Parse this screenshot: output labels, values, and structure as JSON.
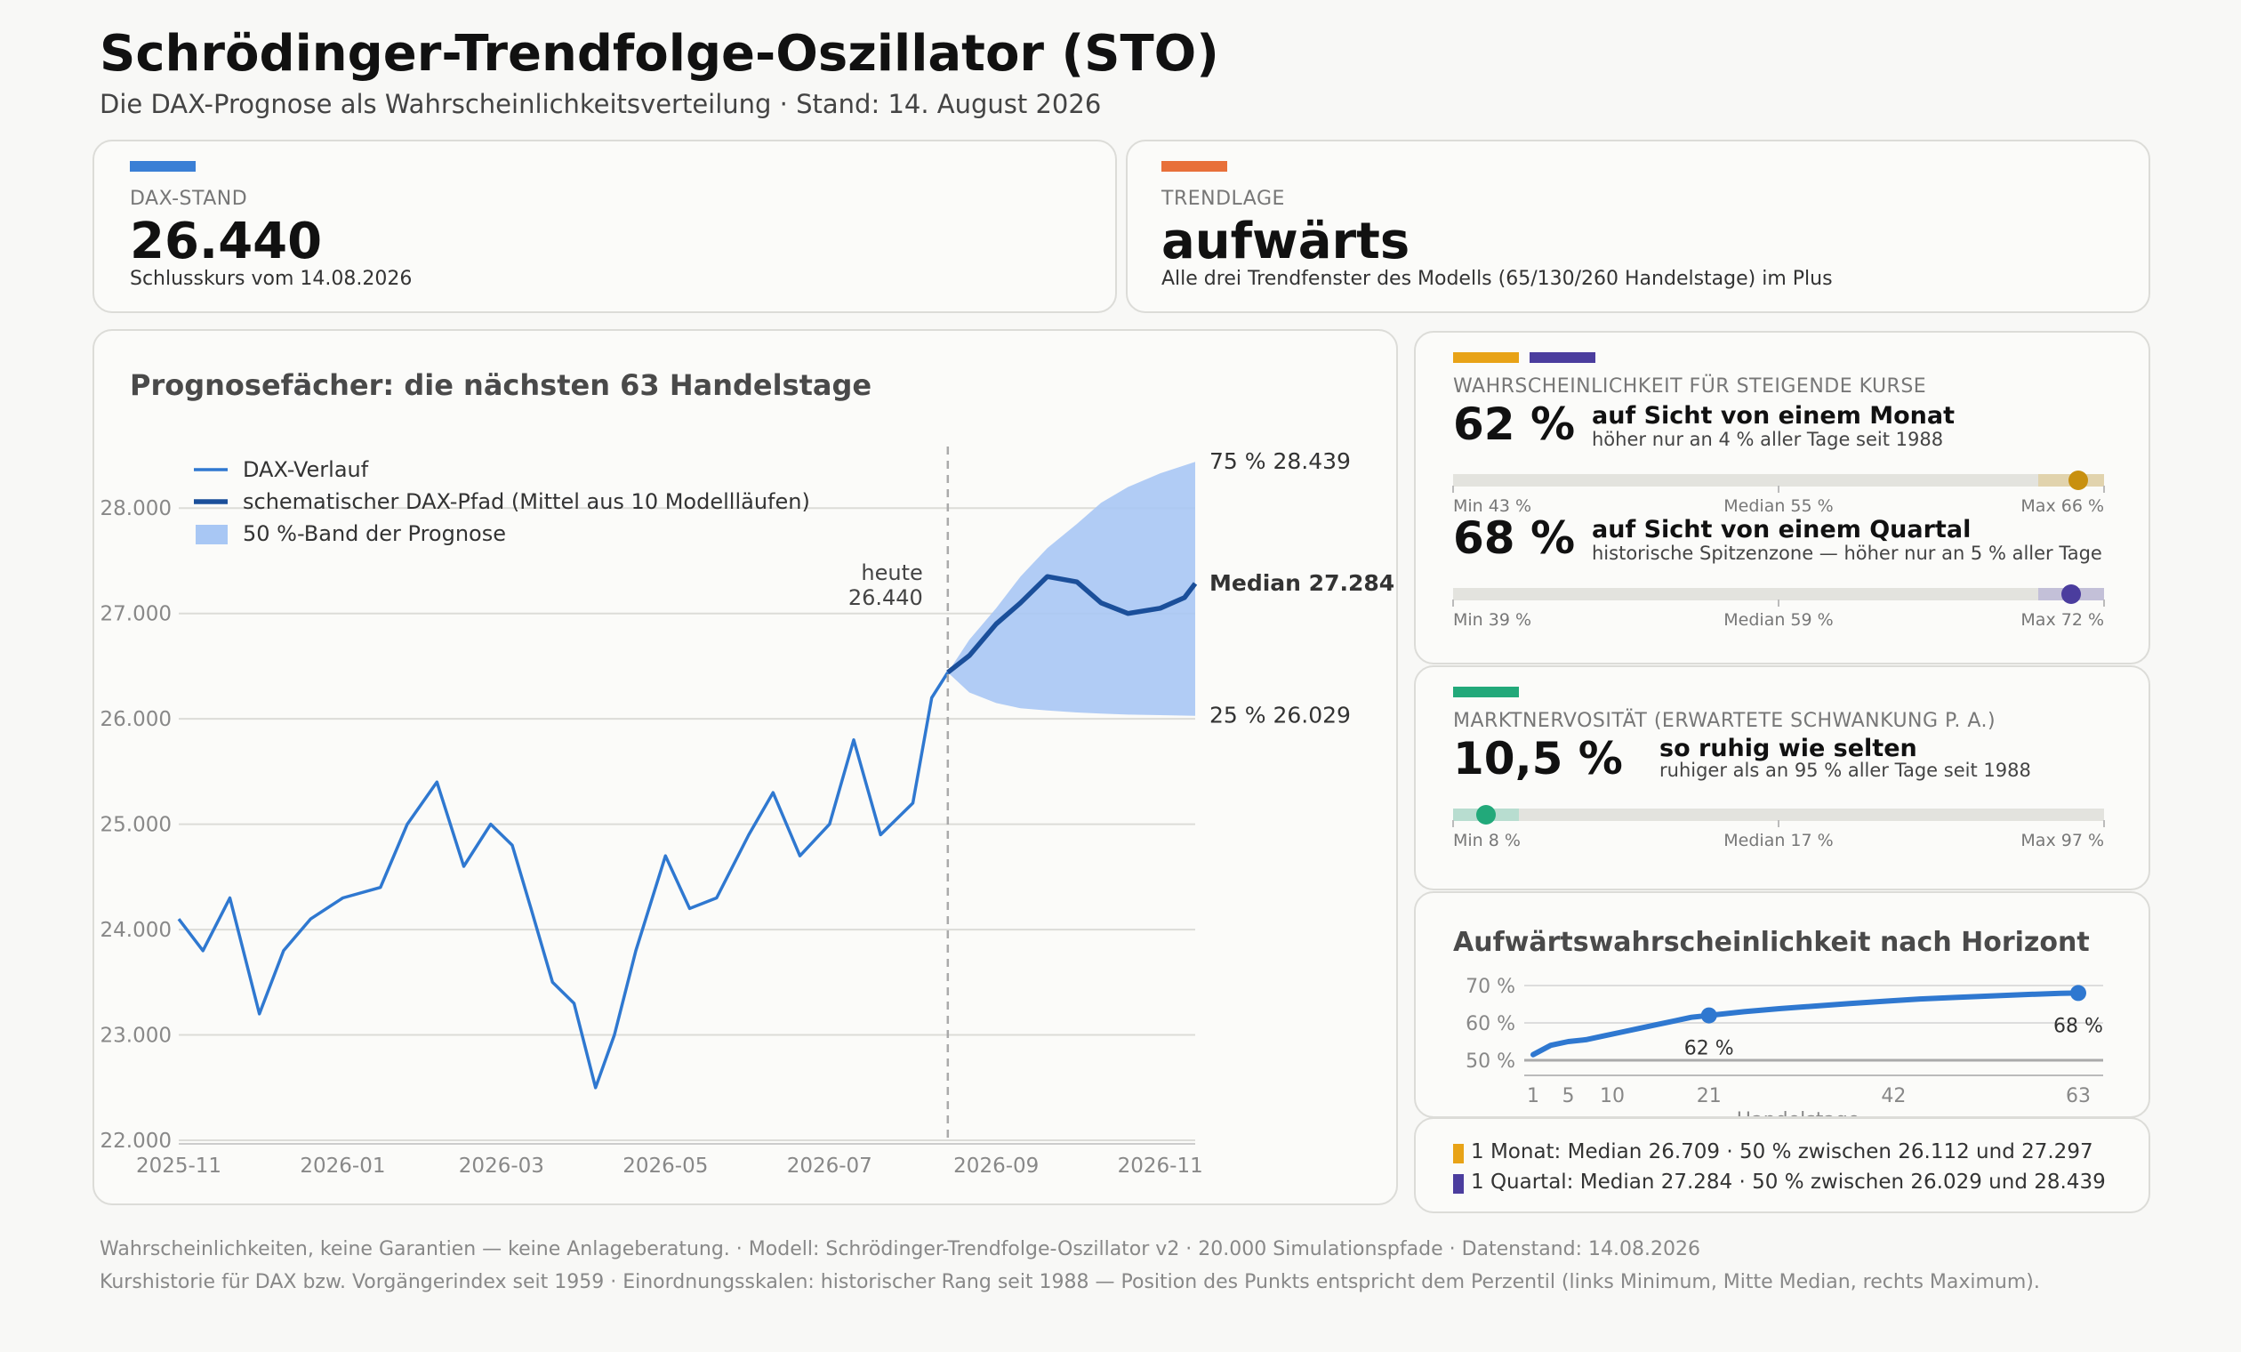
{
  "header": {
    "title": "Schrödinger-Trendfolge-Oszillator (STO)",
    "subtitle": "Die DAX-Prognose als Wahrscheinlichkeitsverteilung  ·  Stand: 14. August 2026"
  },
  "kpi_dax": {
    "label": "DAX-STAND",
    "value": "26.440",
    "sub": "Schlusskurs vom 14.08.2026",
    "accent": "#3a7fd5"
  },
  "kpi_trend": {
    "label": "TRENDLAGE",
    "value": "aufwärts",
    "sub": "Alle drei Trendfenster des Modells (65/130/260 Handelstage) im Plus",
    "accent": "#e8703a"
  },
  "prob_card": {
    "label": "WAHRSCHEINLICHKEIT FÜR STEIGENDE KURSE",
    "accent_colors": [
      "#e8a317",
      "#4b3d9e"
    ],
    "month": {
      "value": "62 %",
      "title": "auf Sicht von einem Monat",
      "sub": "höher nur an 4 % aller Tage seit 1988",
      "min": "Min 43 %",
      "median": "Median 55 %",
      "max": "Max 66 %",
      "percentile": 96,
      "color": "#c8900f",
      "zone_color": "#e1d3ad"
    },
    "quarter": {
      "value": "68 %",
      "title": "auf Sicht von einem Quartal",
      "sub": "historische Spitzenzone — höher nur an 5 % aller Tage",
      "min": "Min 39 %",
      "median": "Median 59 %",
      "max": "Max 72 %",
      "percentile": 95,
      "color": "#4b3d9e",
      "zone_color": "#c3c0d8"
    }
  },
  "vol_card": {
    "label": "MARKTNERVOSITÄT (ERWARTETE SCHWANKUNG P. A.)",
    "accent": "#22a97a",
    "value": "10,5 %",
    "title": "so ruhig wie selten",
    "sub": "ruhiger als an 95 % aller Tage seit 1988",
    "min": "Min 8 %",
    "median": "Median 17 %",
    "max": "Max 97 %",
    "percentile": 5,
    "color": "#22a97a",
    "zone_color": "#b8ddd0"
  },
  "horizon_card": {
    "title": "Aufwärtswahrscheinlichkeit nach Horizont"
  },
  "legend_card": {
    "month": {
      "color": "#e8a317",
      "text": "1 Monat:  Median 26.709  ·  50 % zwischen 26.112 und 27.297"
    },
    "quarter": {
      "color": "#4b3d9e",
      "text": "1 Quartal:  Median 27.284  ·  50 % zwischen 26.029 und 28.439"
    }
  },
  "footer": {
    "line1": "Wahrscheinlichkeiten, keine Garantien — keine Anlageberatung.   ·   Modell: Schrödinger-Trendfolge-Oszillator v2  ·  20.000 Simulationspfade  ·  Datenstand: 14.08.2026",
    "line2": "Kurshistorie für DAX bzw. Vorgängerindex seit 1959  ·  Einordnungsskalen: historischer Rang seit 1988 — Position des Punkts entspricht dem Perzentil (links Minimum, Mitte Median, rechts Maximum)."
  },
  "chart_data": [
    {
      "type": "line",
      "title": "Prognosefächer: die nächsten 63 Handelstage",
      "x_tick_labels": [
        "2025-11",
        "2026-01",
        "2026-03",
        "2026-05",
        "2026-07",
        "2026-09",
        "2026-11"
      ],
      "y_tick_labels": [
        "22.000",
        "23.000",
        "24.000",
        "25.000",
        "26.000",
        "27.000",
        "28.000"
      ],
      "ylim": [
        22000,
        28500
      ],
      "xlim": [
        "2025-11-01",
        "2026-11-14"
      ],
      "today": {
        "date": "2026-08-14",
        "label": "heute",
        "value_label": "26.440",
        "value": 26440
      },
      "legend": [
        "DAX-Verlauf",
        "schematischer DAX-Pfad (Mittel aus 10 Modellläufen)",
        "50 %-Band der Prognose"
      ],
      "colors": {
        "history": "#2f78d0",
        "path": "#1b4f9a",
        "band": "#a8c7f4"
      },
      "annotations": {
        "p75": "75 %  28.439",
        "median": "Median  27.284",
        "p25": "25 %  26.029"
      },
      "history": {
        "dates": [
          "2025-11-01",
          "2025-11-10",
          "2025-11-20",
          "2025-12-01",
          "2025-12-10",
          "2025-12-20",
          "2026-01-01",
          "2026-01-15",
          "2026-01-25",
          "2026-02-05",
          "2026-02-15",
          "2026-02-25",
          "2026-03-05",
          "2026-03-12",
          "2026-03-20",
          "2026-03-28",
          "2026-04-05",
          "2026-04-12",
          "2026-04-20",
          "2026-05-01",
          "2026-05-10",
          "2026-05-20",
          "2026-06-01",
          "2026-06-10",
          "2026-06-20",
          "2026-07-01",
          "2026-07-10",
          "2026-07-20",
          "2026-08-01",
          "2026-08-08",
          "2026-08-14"
        ],
        "values": [
          24100,
          23800,
          24300,
          23200,
          23800,
          24100,
          24300,
          24400,
          25000,
          25400,
          24600,
          25000,
          24800,
          24200,
          23500,
          23300,
          22500,
          23000,
          23800,
          24700,
          24200,
          24300,
          24900,
          25300,
          24700,
          25000,
          25800,
          24900,
          25200,
          26200,
          26440
        ]
      },
      "path": {
        "dates": [
          "2026-08-14",
          "2026-08-22",
          "2026-09-01",
          "2026-09-10",
          "2026-09-20",
          "2026-10-01",
          "2026-10-10",
          "2026-10-20",
          "2026-11-01",
          "2026-11-10",
          "2026-11-14"
        ],
        "values": [
          26440,
          26600,
          26900,
          27100,
          27350,
          27300,
          27100,
          27000,
          27050,
          27150,
          27284
        ]
      },
      "band": {
        "dates": [
          "2026-08-14",
          "2026-08-22",
          "2026-09-01",
          "2026-09-10",
          "2026-09-20",
          "2026-10-01",
          "2026-10-10",
          "2026-10-20",
          "2026-11-01",
          "2026-11-14"
        ],
        "upper": [
          26440,
          26750,
          27050,
          27350,
          27620,
          27850,
          28050,
          28200,
          28330,
          28439
        ],
        "lower": [
          26440,
          26250,
          26150,
          26100,
          26080,
          26060,
          26050,
          26040,
          26035,
          26029
        ]
      }
    },
    {
      "type": "line",
      "title": "Aufwärtswahrscheinlichkeit nach Horizont",
      "xlabel": "Handelstage",
      "x_ticks": [
        1,
        5,
        10,
        21,
        42,
        63
      ],
      "y_tick_labels": [
        "50 %",
        "60 %",
        "70 %"
      ],
      "ylim": [
        48,
        72
      ],
      "color": "#2f78d0",
      "x": [
        1,
        3,
        5,
        7,
        9,
        11,
        13,
        15,
        17,
        19,
        21,
        25,
        29,
        33,
        37,
        41,
        45,
        49,
        53,
        57,
        61,
        63
      ],
      "y": [
        51.5,
        54.0,
        55.0,
        55.5,
        56.5,
        57.5,
        58.5,
        59.5,
        60.5,
        61.5,
        62.0,
        63.0,
        63.8,
        64.5,
        65.2,
        65.8,
        66.4,
        66.8,
        67.2,
        67.6,
        67.9,
        68.0
      ],
      "markers": [
        {
          "x": 21,
          "y": 62,
          "label": "62 %"
        },
        {
          "x": 63,
          "y": 68,
          "label": "68 %"
        }
      ]
    }
  ]
}
